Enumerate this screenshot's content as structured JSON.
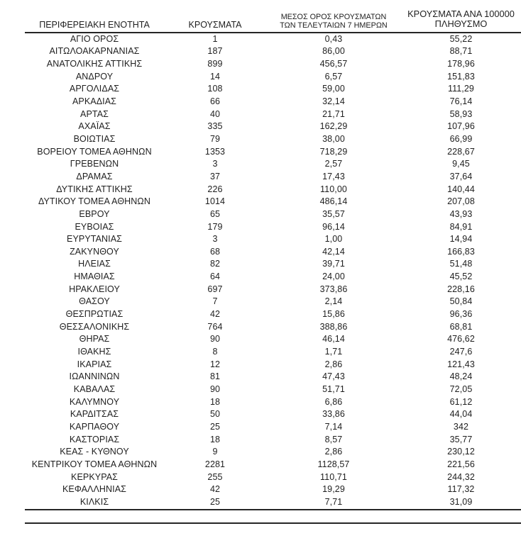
{
  "page": {
    "background_color": "#ffffff",
    "text_color": "#1f1f1f",
    "rule_color": "#262626"
  },
  "table": {
    "headers": {
      "region": "ΠΕΡΙΦΕΡΕΙΑΚΗ ΕΝΟΤΗΤΑ",
      "cases": "ΚΡΟΥΣΜΑΤΑ",
      "avg7_line1": "ΜΕΣΟΣ ΟΡΟΣ ΚΡΟΥΣΜΑΤΩΝ",
      "avg7_line2": "ΤΩΝ ΤΕΛΕΥΤΑΙΩΝ 7 ΗΜΕΡΩΝ",
      "per100k_line1": "ΚΡΟΥΣΜΑΤΑ ΑΝΑ 100000",
      "per100k_line2": "ΠΛΗΘΥΣΜΟ"
    },
    "rows": [
      [
        "ΑΓΙΟ ΟΡΟΣ",
        "1",
        "0,43",
        "55,22"
      ],
      [
        "ΑΙΤΩΛΟΑΚΑΡΝΑΝΙΑΣ",
        "187",
        "86,00",
        "88,71"
      ],
      [
        "ΑΝΑΤΟΛΙΚΗΣ ΑΤΤΙΚΗΣ",
        "899",
        "456,57",
        "178,96"
      ],
      [
        "ΑΝΔΡΟΥ",
        "14",
        "6,57",
        "151,83"
      ],
      [
        "ΑΡΓΟΛΙΔΑΣ",
        "108",
        "59,00",
        "111,29"
      ],
      [
        "ΑΡΚΑΔΙΑΣ",
        "66",
        "32,14",
        "76,14"
      ],
      [
        "ΑΡΤΑΣ",
        "40",
        "21,71",
        "58,93"
      ],
      [
        "ΑΧΑΪΑΣ",
        "335",
        "162,29",
        "107,96"
      ],
      [
        "ΒΟΙΩΤΙΑΣ",
        "79",
        "38,00",
        "66,99"
      ],
      [
        "ΒΟΡΕΙΟΥ ΤΟΜΕΑ ΑΘΗΝΩΝ",
        "1353",
        "718,29",
        "228,67"
      ],
      [
        "ΓΡΕΒΕΝΩΝ",
        "3",
        "2,57",
        "9,45"
      ],
      [
        "ΔΡΑΜΑΣ",
        "37",
        "17,43",
        "37,64"
      ],
      [
        "ΔΥΤΙΚΗΣ ΑΤΤΙΚΗΣ",
        "226",
        "110,00",
        "140,44"
      ],
      [
        "ΔΥΤΙΚΟΥ ΤΟΜΕΑ ΑΘΗΝΩΝ",
        "1014",
        "486,14",
        "207,08"
      ],
      [
        "ΕΒΡΟΥ",
        "65",
        "35,57",
        "43,93"
      ],
      [
        "ΕΥΒΟΙΑΣ",
        "179",
        "96,14",
        "84,91"
      ],
      [
        "ΕΥΡΥΤΑΝΙΑΣ",
        "3",
        "1,00",
        "14,94"
      ],
      [
        "ΖΑΚΥΝΘΟΥ",
        "68",
        "42,14",
        "166,83"
      ],
      [
        "ΗΛΕΙΑΣ",
        "82",
        "39,71",
        "51,48"
      ],
      [
        "ΗΜΑΘΙΑΣ",
        "64",
        "24,00",
        "45,52"
      ],
      [
        "ΗΡΑΚΛΕΙΟΥ",
        "697",
        "373,86",
        "228,16"
      ],
      [
        "ΘΑΣΟΥ",
        "7",
        "2,14",
        "50,84"
      ],
      [
        "ΘΕΣΠΡΩΤΙΑΣ",
        "42",
        "15,86",
        "96,36"
      ],
      [
        "ΘΕΣΣΑΛΟΝΙΚΗΣ",
        "764",
        "388,86",
        "68,81"
      ],
      [
        "ΘΗΡΑΣ",
        "90",
        "46,14",
        "476,62"
      ],
      [
        "ΙΘΑΚΗΣ",
        "8",
        "1,71",
        "247,6"
      ],
      [
        "ΙΚΑΡΙΑΣ",
        "12",
        "2,86",
        "121,43"
      ],
      [
        "ΙΩΑΝΝΙΝΩΝ",
        "81",
        "47,43",
        "48,24"
      ],
      [
        "ΚΑΒΑΛΑΣ",
        "90",
        "51,71",
        "72,05"
      ],
      [
        "ΚΑΛΥΜΝΟΥ",
        "18",
        "6,86",
        "61,12"
      ],
      [
        "ΚΑΡΔΙΤΣΑΣ",
        "50",
        "33,86",
        "44,04"
      ],
      [
        "ΚΑΡΠΑΘΟΥ",
        "25",
        "7,14",
        "342"
      ],
      [
        "ΚΑΣΤΟΡΙΑΣ",
        "18",
        "8,57",
        "35,77"
      ],
      [
        "ΚΕΑΣ - ΚΥΘΝΟΥ",
        "9",
        "2,86",
        "230,12"
      ],
      [
        "ΚΕΝΤΡΙΚΟΥ ΤΟΜΕΑ ΑΘΗΝΩΝ",
        "2281",
        "1128,57",
        "221,56"
      ],
      [
        "ΚΕΡΚΥΡΑΣ",
        "255",
        "110,71",
        "244,32"
      ],
      [
        "ΚΕΦΑΛΛΗΝΙΑΣ",
        "42",
        "19,29",
        "117,32"
      ],
      [
        "ΚΙΛΚΙΣ",
        "25",
        "7,71",
        "31,09"
      ]
    ],
    "cell_names": [
      "region-cell",
      "cases-cell",
      "avg7-cell",
      "per100k-cell"
    ]
  }
}
